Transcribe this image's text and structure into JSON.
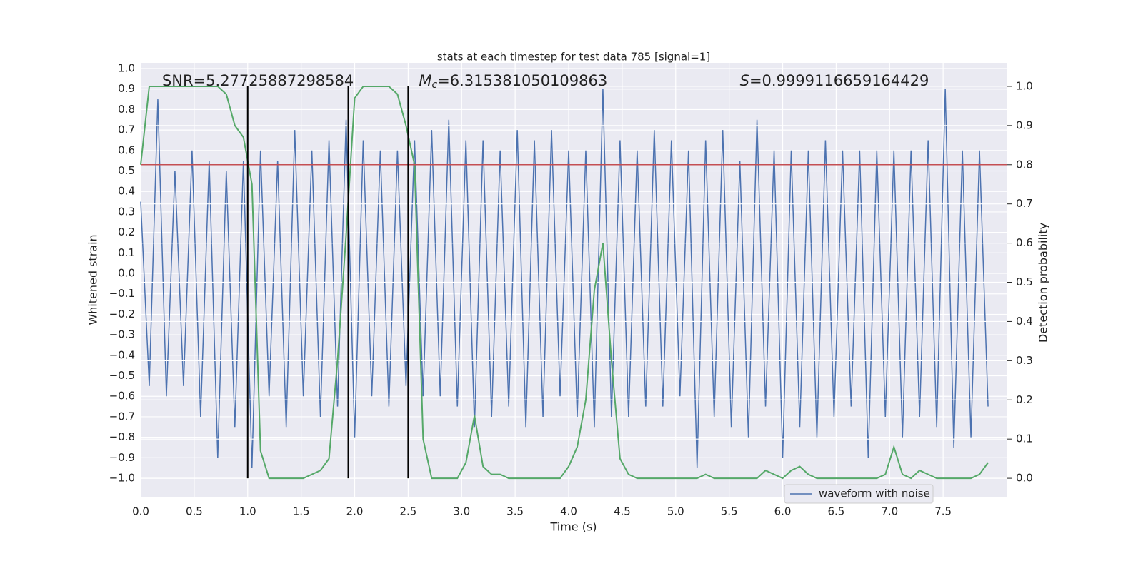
{
  "chart_data": {
    "type": "line",
    "title": "stats at each timestep for test data 785 [signal=1]",
    "xlabel": "Time (s)",
    "ylabel": "Whitened strain",
    "y2label": "Detection probability",
    "annotations": [
      {
        "text": "SNR=5.27725887298584",
        "x": 0.2
      },
      {
        "symbol": "M",
        "subscript": "c",
        "text": "=6.315381050109863",
        "x": 2.6
      },
      {
        "symbol": "S",
        "text": "=0.9999116659164429",
        "x": 5.6
      }
    ],
    "x": [
      0,
      0.08,
      0.16,
      0.24,
      0.32,
      0.4,
      0.48,
      0.56,
      0.64,
      0.72,
      0.8,
      0.88,
      0.96,
      1.04,
      1.12,
      1.2,
      1.28,
      1.36,
      1.44,
      1.52,
      1.6,
      1.68,
      1.76,
      1.84,
      1.92,
      2,
      2.08,
      2.16,
      2.24,
      2.32,
      2.4,
      2.48,
      2.56,
      2.64,
      2.72,
      2.8,
      2.88,
      2.96,
      3.04,
      3.12,
      3.2,
      3.28,
      3.36,
      3.44,
      3.52,
      3.6,
      3.68,
      3.76,
      3.84,
      3.92,
      4,
      4.08,
      4.16,
      4.24,
      4.32,
      4.4,
      4.48,
      4.56,
      4.64,
      4.72,
      4.8,
      4.88,
      4.96,
      5.04,
      5.12,
      5.2,
      5.28,
      5.36,
      5.44,
      5.52,
      5.6,
      5.68,
      5.76,
      5.84,
      5.92,
      6,
      6.08,
      6.16,
      6.24,
      6.32,
      6.4,
      6.48,
      6.56,
      6.64,
      6.72,
      6.8,
      6.88,
      6.96,
      7.04,
      7.12,
      7.2,
      7.28,
      7.36,
      7.44,
      7.52,
      7.6,
      7.68,
      7.76,
      7.84,
      7.92
    ],
    "series": [
      {
        "name": "waveform with noise",
        "color": "#4c72b0",
        "values": [
          0.35,
          -0.55,
          0.85,
          -0.6,
          0.5,
          -0.55,
          0.6,
          -0.7,
          0.55,
          -0.9,
          0.5,
          -0.75,
          0.55,
          -0.95,
          0.6,
          -0.6,
          0.55,
          -0.75,
          0.7,
          -0.6,
          0.6,
          -0.7,
          0.65,
          -0.65,
          0.75,
          -0.8,
          0.65,
          -0.6,
          0.6,
          -0.65,
          0.6,
          -0.55,
          0.65,
          -0.6,
          0.7,
          -0.6,
          0.75,
          -0.65,
          0.65,
          -0.75,
          0.65,
          -0.7,
          0.6,
          -0.65,
          0.7,
          -0.75,
          0.65,
          -0.7,
          0.7,
          -0.6,
          0.6,
          -0.7,
          0.6,
          -0.75,
          0.9,
          -0.7,
          0.65,
          -0.7,
          0.6,
          -0.65,
          0.7,
          -0.65,
          0.65,
          -0.6,
          0.6,
          -0.95,
          0.65,
          -0.7,
          0.7,
          -0.75,
          0.55,
          -0.8,
          0.75,
          -0.65,
          0.6,
          -0.9,
          0.6,
          -0.75,
          0.6,
          -0.8,
          0.65,
          -0.7,
          0.6,
          -0.65,
          0.6,
          -0.9,
          0.6,
          -0.7,
          0.6,
          -0.8,
          0.6,
          -0.7,
          0.65,
          -0.75,
          0.9,
          -0.85,
          0.6,
          -0.8,
          0.6,
          -0.65
        ]
      },
      {
        "color": "#55a868",
        "axis": "y2",
        "values": [
          0.8,
          1,
          1,
          1,
          1,
          1,
          1,
          1,
          1,
          1,
          0.98,
          0.9,
          0.87,
          0.75,
          0.07,
          0,
          0,
          0,
          0,
          0,
          0.01,
          0.02,
          0.05,
          0.3,
          0.62,
          0.97,
          1,
          1,
          1,
          1,
          0.98,
          0.9,
          0.8,
          0.1,
          0,
          0,
          0,
          0,
          0.04,
          0.16,
          0.03,
          0.01,
          0.01,
          0,
          0,
          0,
          0,
          0,
          0,
          0,
          0.03,
          0.08,
          0.2,
          0.48,
          0.6,
          0.3,
          0.05,
          0.01,
          0,
          0,
          0,
          0,
          0,
          0,
          0,
          0,
          0.01,
          0,
          0,
          0,
          0,
          0,
          0,
          0.02,
          0.01,
          0,
          0.02,
          0.03,
          0.01,
          0,
          0,
          0,
          0,
          0,
          0,
          0,
          0,
          0.01,
          0.08,
          0.01,
          0,
          0.02,
          0.01,
          0,
          0,
          0,
          0,
          0,
          0.01,
          0.04
        ]
      }
    ],
    "hlines": [
      {
        "value": 0.8,
        "axis": "y2",
        "color": "#c44e52"
      }
    ],
    "vlines": [
      {
        "x": 1.0,
        "y2": [
          0,
          1
        ]
      },
      {
        "x": 1.94,
        "y2": [
          0,
          1
        ]
      },
      {
        "x": 2.5,
        "y2": [
          0,
          1
        ]
      }
    ],
    "xlim": [
      0,
      8.1
    ],
    "ylim": [
      -1.094,
      1.028
    ],
    "y2lim": [
      -0.049,
      1.06
    ],
    "xticks": [
      {
        "value": 0,
        "label": "0.0"
      },
      {
        "value": 0.5,
        "label": "0.5"
      },
      {
        "value": 1,
        "label": "1.0"
      },
      {
        "value": 1.5,
        "label": "1.5"
      },
      {
        "value": 2,
        "label": "2.0"
      },
      {
        "value": 2.5,
        "label": "2.5"
      },
      {
        "value": 3,
        "label": "3.0"
      },
      {
        "value": 3.5,
        "label": "3.5"
      },
      {
        "value": 4,
        "label": "4.0"
      },
      {
        "value": 4.5,
        "label": "4.5"
      },
      {
        "value": 5,
        "label": "5.0"
      },
      {
        "value": 5.5,
        "label": "5.5"
      },
      {
        "value": 6,
        "label": "6.0"
      },
      {
        "value": 6.5,
        "label": "6.5"
      },
      {
        "value": 7,
        "label": "7.0"
      },
      {
        "value": 7.5,
        "label": "7.5"
      }
    ],
    "yticks": [
      {
        "value": -1,
        "label": "−1.0"
      },
      {
        "value": -0.9,
        "label": "−0.9"
      },
      {
        "value": -0.8,
        "label": "−0.8"
      },
      {
        "value": -0.7,
        "label": "−0.7"
      },
      {
        "value": -0.6,
        "label": "−0.6"
      },
      {
        "value": -0.5,
        "label": "−0.5"
      },
      {
        "value": -0.4,
        "label": "−0.4"
      },
      {
        "value": -0.3,
        "label": "−0.3"
      },
      {
        "value": -0.2,
        "label": "−0.2"
      },
      {
        "value": -0.1,
        "label": "−0.1"
      },
      {
        "value": 0,
        "label": "0.0"
      },
      {
        "value": 0.1,
        "label": "0.1"
      },
      {
        "value": 0.2,
        "label": "0.2"
      },
      {
        "value": 0.3,
        "label": "0.3"
      },
      {
        "value": 0.4,
        "label": "0.4"
      },
      {
        "value": 0.5,
        "label": "0.5"
      },
      {
        "value": 0.6,
        "label": "0.6"
      },
      {
        "value": 0.7,
        "label": "0.7"
      },
      {
        "value": 0.8,
        "label": "0.8"
      },
      {
        "value": 0.9,
        "label": "0.9"
      },
      {
        "value": 1,
        "label": "1.0"
      }
    ],
    "y2ticks": [
      {
        "value": 0,
        "label": "0.0"
      },
      {
        "value": 0.1,
        "label": "0.1"
      },
      {
        "value": 0.2,
        "label": "0.2"
      },
      {
        "value": 0.3,
        "label": "0.3"
      },
      {
        "value": 0.4,
        "label": "0.4"
      },
      {
        "value": 0.5,
        "label": "0.5"
      },
      {
        "value": 0.6,
        "label": "0.6"
      },
      {
        "value": 0.7,
        "label": "0.7"
      },
      {
        "value": 0.8,
        "label": "0.8"
      },
      {
        "value": 0.9,
        "label": "0.9"
      },
      {
        "value": 1,
        "label": "1.0"
      }
    ],
    "grid": true,
    "legend": "lower right"
  }
}
